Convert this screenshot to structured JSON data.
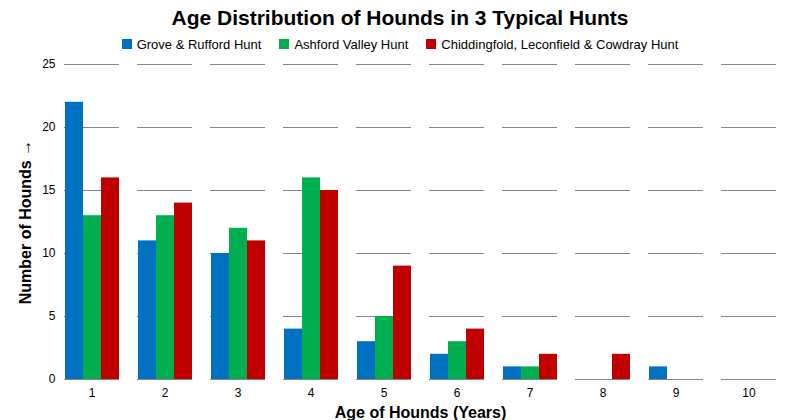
{
  "chart_data": {
    "type": "bar",
    "title": "Age Distribution of Hounds in 3 Typical Hunts",
    "x_label": "Age of Hounds (Years)",
    "y_label": "Number of Hounds",
    "categories": [
      1,
      2,
      3,
      4,
      5,
      6,
      7,
      8,
      9,
      10
    ],
    "series": [
      {
        "name": "Grove & Rufford Hunt",
        "color": "#0070C0",
        "values": [
          22,
          11,
          10,
          4,
          3,
          2,
          1,
          0,
          1,
          0
        ]
      },
      {
        "name": "Ashford Valley Hunt",
        "color": "#00B050",
        "values": [
          13,
          13,
          12,
          16,
          5,
          3,
          1,
          0,
          0,
          0
        ]
      },
      {
        "name": "Chiddingfold, Leconfield & Cowdray Hunt",
        "color": "#C00000",
        "values": [
          16,
          14,
          11,
          15,
          9,
          4,
          2,
          2,
          0,
          0
        ]
      }
    ],
    "ylim": [
      0,
      25
    ],
    "yticks": [
      0,
      5,
      10,
      15,
      20,
      25
    ],
    "grid": true,
    "legend": "top"
  }
}
